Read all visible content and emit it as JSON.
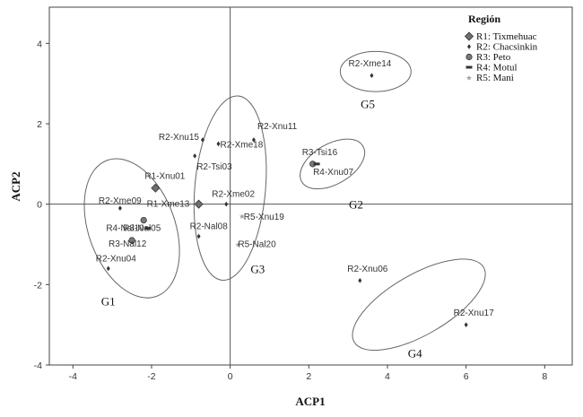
{
  "chart_data": {
    "type": "scatter",
    "title": "",
    "xlabel": "ACP1",
    "ylabel": "ACP2",
    "xlim": [
      -4.6,
      8.7
    ],
    "ylim": [
      -4,
      4.9
    ],
    "xticks": [
      "-4",
      "-2",
      "0",
      "2",
      "4",
      "6",
      "8"
    ],
    "yticks": [
      "-4",
      "-2",
      "0",
      "2",
      "4"
    ],
    "grid": false,
    "reference_lines": {
      "x": 0,
      "y": 0
    },
    "legend": {
      "title": "Región",
      "placement": "top-right",
      "entries": [
        {
          "name": "R1: Tixmehuac",
          "marker": "diamond",
          "color": "#6e6e6e"
        },
        {
          "name": "R2: Chacsinkin",
          "marker": "small-diamond",
          "color": "#333333"
        },
        {
          "name": "R3: Peto",
          "marker": "circle",
          "color": "#7a7a7a"
        },
        {
          "name": "R4: Motul",
          "marker": "bar",
          "color": "#333333"
        },
        {
          "name": "R5: Mani",
          "marker": "star",
          "color": "#999999"
        }
      ]
    },
    "points": [
      {
        "label": "R2-Xme14",
        "region": "R2",
        "x": 3.6,
        "y": 3.2
      },
      {
        "label": "R2-Xnu11",
        "region": "R2",
        "x": 0.6,
        "y": 1.6
      },
      {
        "label": "R2-Xnu15",
        "region": "R2",
        "x": -0.7,
        "y": 1.6
      },
      {
        "label": "R2-Xme18",
        "region": "R2",
        "x": -0.3,
        "y": 1.5
      },
      {
        "label": "R2-Tsi03",
        "region": "R2",
        "x": -0.9,
        "y": 1.2
      },
      {
        "label": "R3-Tsi16",
        "region": "R3",
        "x": 2.1,
        "y": 1.0
      },
      {
        "label": "R4-Xnu07",
        "region": "R4",
        "x": 2.2,
        "y": 1.0
      },
      {
        "label": "R1-Xnu01",
        "region": "R1",
        "x": -1.9,
        "y": 0.4
      },
      {
        "label": "R2-Xme02",
        "region": "R2",
        "x": -0.1,
        "y": 0.0
      },
      {
        "label": "R1-Xme13",
        "region": "R1",
        "x": -0.8,
        "y": 0.0
      },
      {
        "label": "R2-Xme09",
        "region": "R2",
        "x": -2.8,
        "y": -0.1
      },
      {
        "label": "R3-Nal05",
        "region": "R3",
        "x": -2.2,
        "y": -0.4
      },
      {
        "label": "R5-Xnu19",
        "region": "R5",
        "x": 0.3,
        "y": -0.3
      },
      {
        "label": "R4-Nal10",
        "region": "R4",
        "x": -2.1,
        "y": -0.6
      },
      {
        "label": "R2-Nal08",
        "region": "R2",
        "x": -0.8,
        "y": -0.8
      },
      {
        "label": "R3-Nal12",
        "region": "R3",
        "x": -2.5,
        "y": -0.9
      },
      {
        "label": "R5-Nal20",
        "region": "R5",
        "x": 0.2,
        "y": -1.0
      },
      {
        "label": "R2-Xnu04",
        "region": "R2",
        "x": -3.1,
        "y": -1.6
      },
      {
        "label": "R2-Xnu06",
        "region": "R2",
        "x": 3.3,
        "y": -1.9
      },
      {
        "label": "R2-Xnu17",
        "region": "R2",
        "x": 6.0,
        "y": -3.0
      }
    ],
    "groups": [
      {
        "label": "G1",
        "cx": -2.5,
        "cy": -0.6,
        "rx": 1.1,
        "ry": 1.8,
        "angle": -20
      },
      {
        "label": "G2",
        "cx": 2.6,
        "cy": 1.0,
        "rx": 0.9,
        "ry": 0.5,
        "angle": -30
      },
      {
        "label": "G3",
        "cx": 0.0,
        "cy": 0.4,
        "rx": 0.9,
        "ry": 2.3,
        "angle": 5
      },
      {
        "label": "G4",
        "cx": 4.8,
        "cy": -2.5,
        "rx": 1.9,
        "ry": 0.75,
        "angle": -30
      },
      {
        "label": "G5",
        "cx": 3.7,
        "cy": 3.3,
        "rx": 0.9,
        "ry": 0.5,
        "angle": 0
      }
    ]
  }
}
